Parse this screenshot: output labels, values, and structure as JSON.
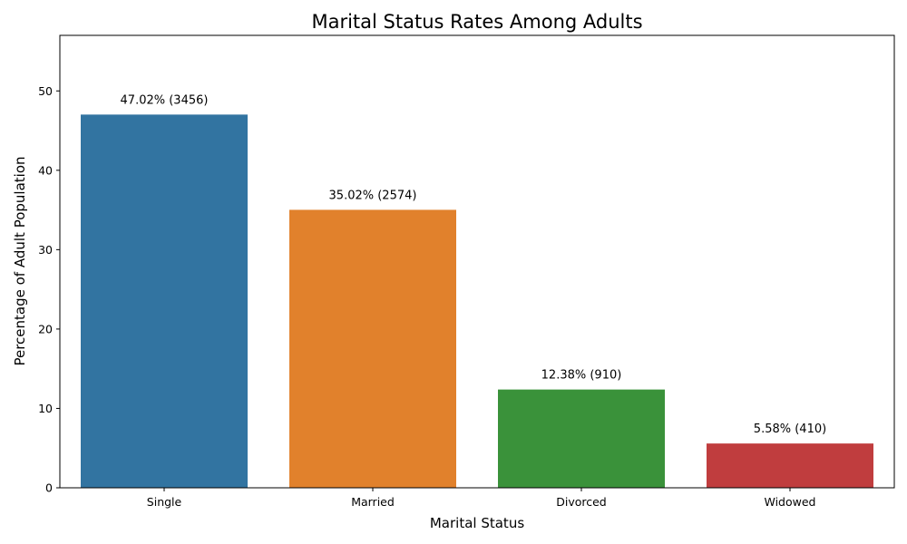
{
  "chart_data": {
    "type": "bar",
    "title": "Marital Status Rates Among Adults",
    "xlabel": "Marital Status",
    "ylabel": "Percentage of Adult Population",
    "categories": [
      "Single",
      "Married",
      "Divorced",
      "Widowed"
    ],
    "values": [
      47.02,
      35.02,
      12.38,
      5.58
    ],
    "data_labels": [
      "47.02% (3456)",
      "35.02% (2574)",
      "12.38% (910)",
      "5.58% (410)"
    ],
    "colors": [
      "#3274a1",
      "#e1812c",
      "#3a923a",
      "#c03d3e"
    ],
    "ylim": [
      0,
      57
    ],
    "yticks": [
      0,
      10,
      20,
      30,
      40,
      50
    ],
    "grid": false,
    "legend": "none"
  }
}
